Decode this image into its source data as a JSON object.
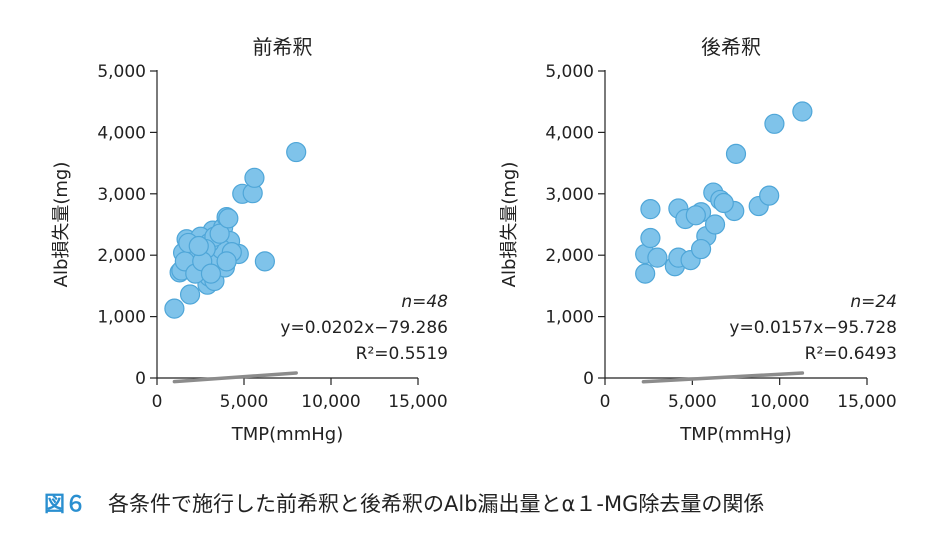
{
  "figure": {
    "number": "図６",
    "caption": "各条件で施行した前希釈と後希釈のAlb漏出量とα１-MG除去量の関係"
  },
  "colors": {
    "marker": "#7fc3ea",
    "marker_stroke": "#4fa6d8",
    "fit_line": "#8c8c8c",
    "figure_number": "#2a8fd0"
  },
  "chart_data": [
    {
      "type": "scatter",
      "title": "前希釈",
      "xlabel": "TMP(mmHg)",
      "ylabel": "Alb損失量(mg)",
      "xlim": [
        0,
        15000
      ],
      "ylim": [
        0,
        5000
      ],
      "xticks": [
        0,
        5000,
        10000,
        15000
      ],
      "xtick_labels": [
        "0",
        "5,000",
        "10,000",
        "15,000"
      ],
      "yticks": [
        0,
        1000,
        2000,
        3000,
        4000,
        5000
      ],
      "ytick_labels": [
        "0",
        "1,000",
        "2,000",
        "3,000",
        "4,000",
        "5,000"
      ],
      "grid": false,
      "annotations": [
        "n=48",
        "y=0.0202x−79.286",
        "R²=0.5519"
      ],
      "fit": {
        "slope": 0.0202,
        "intercept": -79.286,
        "x_range": [
          1000,
          8000
        ]
      },
      "points": [
        [
          1000,
          1130
        ],
        [
          1300,
          1720
        ],
        [
          1500,
          2040
        ],
        [
          1700,
          2260
        ],
        [
          1900,
          1360
        ],
        [
          2000,
          1900
        ],
        [
          2200,
          1800
        ],
        [
          2400,
          2050
        ],
        [
          2600,
          2230
        ],
        [
          2700,
          1980
        ],
        [
          2800,
          1850
        ],
        [
          2900,
          1520
        ],
        [
          3000,
          1650
        ],
        [
          3100,
          2120
        ],
        [
          3200,
          2400
        ],
        [
          3300,
          1580
        ],
        [
          3500,
          2270
        ],
        [
          3600,
          2000
        ],
        [
          3800,
          2450
        ],
        [
          3900,
          1800
        ],
        [
          4000,
          2620
        ],
        [
          4100,
          2100
        ],
        [
          4200,
          2230
        ],
        [
          4700,
          2020
        ],
        [
          4900,
          3000
        ],
        [
          5500,
          3010
        ],
        [
          5600,
          3260
        ],
        [
          6200,
          1900
        ],
        [
          8000,
          3680
        ],
        [
          2100,
          2150
        ],
        [
          1400,
          1750
        ],
        [
          2300,
          2000
        ],
        [
          3400,
          1950
        ],
        [
          3700,
          2100
        ],
        [
          1600,
          1900
        ],
        [
          2500,
          2300
        ],
        [
          3000,
          2200
        ],
        [
          4300,
          2050
        ],
        [
          2200,
          1700
        ],
        [
          3300,
          2300
        ],
        [
          2800,
          2100
        ],
        [
          1800,
          2200
        ],
        [
          3600,
          2350
        ],
        [
          4000,
          1900
        ],
        [
          2600,
          1900
        ],
        [
          3100,
          1700
        ],
        [
          4100,
          2600
        ],
        [
          2400,
          2150
        ]
      ]
    },
    {
      "type": "scatter",
      "title": "後希釈",
      "xlabel": "TMP(mmHg)",
      "ylabel": "Alb損失量(mg)",
      "xlim": [
        0,
        15000
      ],
      "ylim": [
        0,
        5000
      ],
      "xticks": [
        0,
        5000,
        10000,
        15000
      ],
      "xtick_labels": [
        "0",
        "5,000",
        "10,000",
        "15,000"
      ],
      "yticks": [
        0,
        1000,
        2000,
        3000,
        4000,
        5000
      ],
      "ytick_labels": [
        "0",
        "1,000",
        "2,000",
        "3,000",
        "4,000",
        "5,000"
      ],
      "grid": false,
      "annotations": [
        "n=24",
        "y=0.0157x−95.728",
        "R²=0.6493"
      ],
      "fit": {
        "slope": 0.0157,
        "intercept": -95.728,
        "x_range": [
          2200,
          11300
        ]
      },
      "points": [
        [
          2300,
          1700
        ],
        [
          2300,
          2020
        ],
        [
          2600,
          2280
        ],
        [
          2600,
          2750
        ],
        [
          3000,
          1960
        ],
        [
          4000,
          1820
        ],
        [
          4200,
          2760
        ],
        [
          4200,
          1960
        ],
        [
          4900,
          1920
        ],
        [
          4600,
          2590
        ],
        [
          5500,
          2700
        ],
        [
          5800,
          2310
        ],
        [
          5500,
          2100
        ],
        [
          6200,
          3020
        ],
        [
          6300,
          2500
        ],
        [
          6600,
          2900
        ],
        [
          7400,
          2720
        ],
        [
          7500,
          3650
        ],
        [
          8800,
          2800
        ],
        [
          9400,
          2970
        ],
        [
          9700,
          4140
        ],
        [
          11300,
          4340
        ],
        [
          5200,
          2650
        ],
        [
          6800,
          2850
        ]
      ]
    }
  ]
}
